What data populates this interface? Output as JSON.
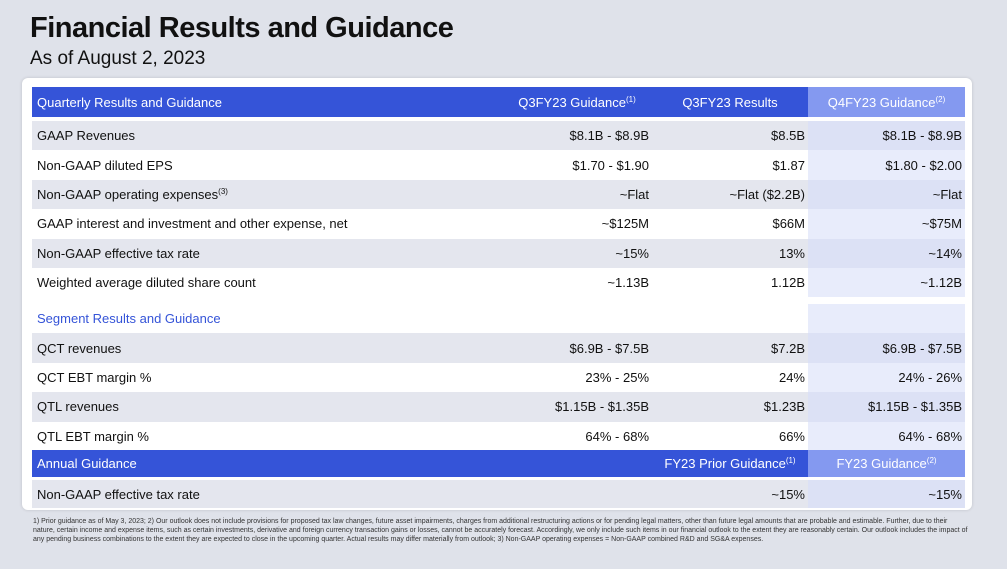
{
  "header": {
    "title": "Financial Results and Guidance",
    "subtitle": "As of August 2, 2023"
  },
  "table": {
    "quarterly": {
      "header": [
        {
          "text": "Quarterly Results and Guidance"
        },
        {
          "text": "Q3FY23 Guidance",
          "note": "(1)"
        },
        {
          "text": "Q3FY23 Results"
        },
        {
          "text": "Q4FY23 Guidance",
          "note": "(2)"
        }
      ],
      "rows": [
        [
          {
            "text": "GAAP Revenues"
          },
          {
            "text": "$8.1B - $8.9B"
          },
          {
            "text": "$8.5B"
          },
          {
            "text": "$8.1B - $8.9B"
          }
        ],
        [
          {
            "text": "Non-GAAP diluted EPS"
          },
          {
            "text": "$1.70 - $1.90"
          },
          {
            "text": "$1.87"
          },
          {
            "text": "$1.80 - $2.00"
          }
        ],
        [
          {
            "text": "Non-GAAP operating expenses",
            "note": "(3)"
          },
          {
            "text": "~Flat"
          },
          {
            "text": "~Flat ($2.2B)"
          },
          {
            "text": "~Flat"
          }
        ],
        [
          {
            "text": "GAAP interest and investment and other expense, net"
          },
          {
            "text": "~$125M"
          },
          {
            "text": "$66M"
          },
          {
            "text": "~$75M"
          }
        ],
        [
          {
            "text": "Non-GAAP effective tax rate"
          },
          {
            "text": "~15%"
          },
          {
            "text": "13%"
          },
          {
            "text": "~14%"
          }
        ],
        [
          {
            "text": "Weighted average diluted share count"
          },
          {
            "text": "~1.13B"
          },
          {
            "text": "1.12B"
          },
          {
            "text": "~1.12B"
          }
        ]
      ]
    },
    "segment": {
      "title": "Segment Results and Guidance",
      "rows": [
        [
          {
            "text": "QCT revenues"
          },
          {
            "text": "$6.9B - $7.5B"
          },
          {
            "text": "$7.2B"
          },
          {
            "text": "$6.9B - $7.5B"
          }
        ],
        [
          {
            "text": "QCT EBT margin %"
          },
          {
            "text": "23% - 25%"
          },
          {
            "text": "24%"
          },
          {
            "text": "24% - 26%"
          }
        ],
        [
          {
            "text": "QTL revenues"
          },
          {
            "text": "$1.15B - $1.35B"
          },
          {
            "text": "$1.23B"
          },
          {
            "text": "$1.15B - $1.35B"
          }
        ],
        [
          {
            "text": "QTL EBT margin %"
          },
          {
            "text": "64% - 68%"
          },
          {
            "text": "66%"
          },
          {
            "text": "64% - 68%"
          }
        ]
      ]
    },
    "annual": {
      "header": [
        {
          "text": "Annual Guidance"
        },
        null,
        {
          "text": "FY23 Prior Guidance",
          "note": "(1)"
        },
        {
          "text": "FY23 Guidance",
          "note": "(2)"
        }
      ],
      "rows": [
        [
          {
            "text": "Non-GAAP effective tax rate"
          },
          null,
          {
            "text": "~15%"
          },
          {
            "text": "~15%"
          }
        ]
      ]
    }
  },
  "footnote": "1) Prior guidance as of May 3, 2023; 2) Our outlook does not include provisions for proposed tax law changes, future asset impairments, charges from additional restructuring actions or for pending legal matters, other than future legal amounts that are probable and estimable. Further, due to their nature, certain income and expense items, such as certain investments, derivative and foreign currency transaction gains or losses, cannot be accurately forecast. Accordingly, we only include such items in our financial outlook to the extent they are reasonably certain. Our outlook includes the impact of any pending business combinations to the extent they are expected to close in the upcoming quarter. Actual results may differ materially from outlook; 3) Non-GAAP operating expenses = Non-GAAP combined R&D and SG&A expenses."
}
